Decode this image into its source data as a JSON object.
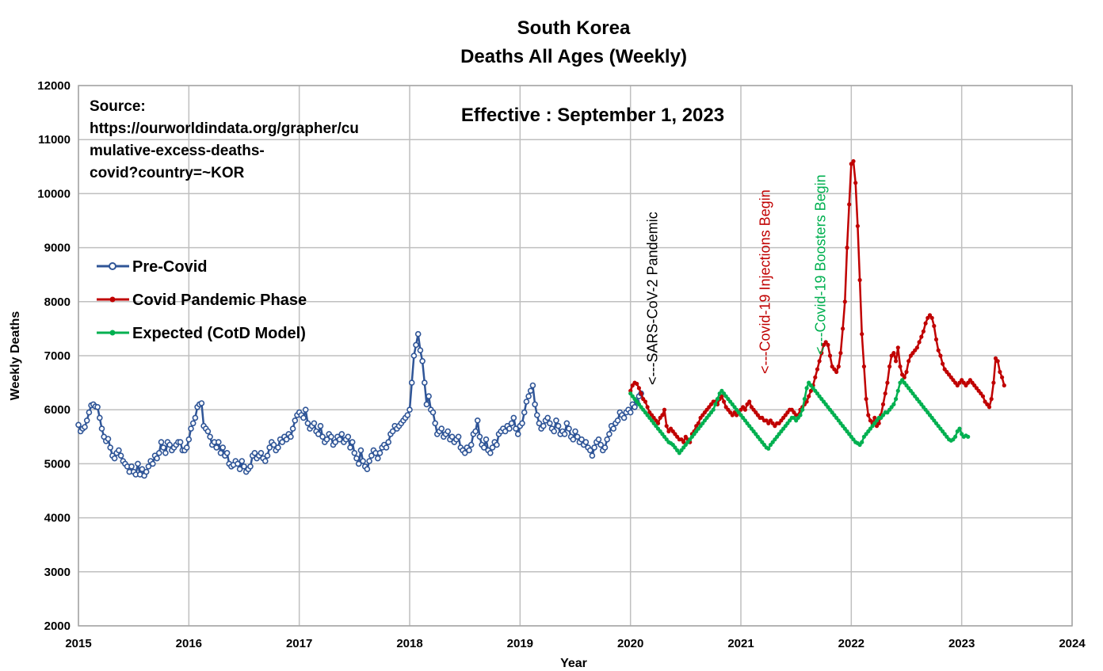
{
  "chart_data": {
    "type": "line",
    "title": "South Korea",
    "subtitle": "Deaths All Ages (Weekly)",
    "xlabel": "Year",
    "ylabel": "Weekly Deaths",
    "xlim": [
      2015,
      2024
    ],
    "ylim": [
      2000,
      12000
    ],
    "x_ticks": [
      "2015",
      "2016",
      "2017",
      "2018",
      "2019",
      "2020",
      "2021",
      "2022",
      "2023",
      "2024"
    ],
    "y_ticks": [
      "2000",
      "3000",
      "4000",
      "5000",
      "6000",
      "7000",
      "8000",
      "9000",
      "10000",
      "11000",
      "12000"
    ],
    "grid": true,
    "legend_position": "left",
    "source_lines": [
      "Source:",
      "https://ourworldindata.org/grapher/cu",
      "mulative-excess-deaths-",
      "covid?country=~KOR"
    ],
    "effective_text": "Effective : September 1, 2023",
    "annotations": [
      {
        "id": "sars",
        "text": "<---SARS-CoV-2 Pandemic",
        "x": 2020.2,
        "color": "#000000"
      },
      {
        "id": "injections",
        "text": "<---Covid-19 Injections Begin",
        "x": 2021.22,
        "color": "#c00000"
      },
      {
        "id": "boosters",
        "text": "<---Covid-19 Boosters Begin",
        "x": 2021.72,
        "color": "#00b050"
      }
    ],
    "series": [
      {
        "name": "Pre-Covid",
        "color": "#2f5597",
        "x_start": 2015.0,
        "weeks_per_year": 52,
        "values": [
          5720,
          5600,
          5650,
          5680,
          5800,
          5950,
          6080,
          6100,
          6060,
          6050,
          5850,
          5650,
          5500,
          5420,
          5460,
          5300,
          5150,
          5100,
          5200,
          5250,
          5150,
          5050,
          5000,
          4950,
          4850,
          4950,
          4850,
          4800,
          5000,
          4800,
          4900,
          4780,
          4850,
          4950,
          5050,
          5000,
          5150,
          5100,
          5200,
          5400,
          5300,
          5200,
          5400,
          5350,
          5250,
          5300,
          5350,
          5400,
          5400,
          5250,
          5250,
          5300,
          5450,
          5650,
          5750,
          5850,
          6050,
          6100,
          6120,
          5700,
          5650,
          5600,
          5500,
          5350,
          5400,
          5300,
          5400,
          5200,
          5300,
          5150,
          5200,
          5000,
          4950,
          4980,
          5050,
          5000,
          4900,
          5050,
          4950,
          4850,
          4900,
          4950,
          5150,
          5200,
          5100,
          5150,
          5200,
          5100,
          5050,
          5150,
          5300,
          5400,
          5350,
          5250,
          5300,
          5450,
          5400,
          5500,
          5450,
          5550,
          5500,
          5650,
          5800,
          5900,
          5950,
          5900,
          5850,
          6000,
          5750,
          5650,
          5700,
          5750,
          5600,
          5550,
          5700,
          5500,
          5400,
          5450,
          5550,
          5500,
          5350,
          5400,
          5500,
          5450,
          5550,
          5400,
          5450,
          5500,
          5300,
          5400,
          5200,
          5100,
          5000,
          5250,
          5050,
          4950,
          4900,
          5050,
          5150,
          5250,
          5200,
          5100,
          5200,
          5300,
          5350,
          5300,
          5400,
          5550,
          5600,
          5700,
          5650,
          5700,
          5750,
          5800,
          5850,
          5900,
          6000,
          6500,
          7000,
          7200,
          7400,
          7100,
          6900,
          6500,
          6100,
          6250,
          6000,
          5950,
          5750,
          5550,
          5600,
          5650,
          5500,
          5550,
          5600,
          5450,
          5500,
          5400,
          5450,
          5500,
          5300,
          5250,
          5200,
          5300,
          5250,
          5350,
          5550,
          5600,
          5800,
          5500,
          5350,
          5300,
          5450,
          5250,
          5200,
          5300,
          5400,
          5350,
          5550,
          5600,
          5650,
          5600,
          5700,
          5650,
          5750,
          5850,
          5650,
          5550,
          5700,
          5750,
          5950,
          6150,
          6250,
          6350,
          6450,
          6100,
          5900,
          5750,
          5650,
          5700,
          5800,
          5850,
          5750,
          5650,
          5600,
          5800,
          5700,
          5550,
          5600,
          5550,
          5750,
          5650,
          5500,
          5450,
          5600,
          5500,
          5400,
          5450,
          5350,
          5400,
          5300,
          5250,
          5150,
          5300,
          5400,
          5450,
          5350,
          5250,
          5300,
          5450,
          5550,
          5700,
          5650,
          5750,
          5800,
          5950,
          5900,
          5850,
          5950,
          6000,
          5950,
          6100,
          6050,
          6150,
          6250,
          6300
        ]
      },
      {
        "name": "Covid Pandemic Phase",
        "color": "#c00000",
        "x_start": 2020.0,
        "weeks_per_year": 52,
        "values": [
          6350,
          6450,
          6500,
          6480,
          6400,
          6300,
          6200,
          6150,
          6050,
          5950,
          5900,
          5850,
          5800,
          5750,
          5850,
          5900,
          6000,
          5700,
          5600,
          5650,
          5600,
          5550,
          5500,
          5450,
          5450,
          5400,
          5500,
          5450,
          5400,
          5550,
          5600,
          5700,
          5750,
          5850,
          5900,
          5950,
          6000,
          6050,
          6100,
          6150,
          6150,
          6100,
          6200,
          6250,
          6150,
          6050,
          6000,
          5950,
          5900,
          5950,
          5900,
          5950,
          6000,
          6050,
          6000,
          6100,
          6150,
          6050,
          6000,
          5950,
          5900,
          5850,
          5850,
          5800,
          5800,
          5750,
          5800,
          5750,
          5700,
          5750,
          5750,
          5800,
          5850,
          5900,
          5950,
          6000,
          6000,
          5950,
          5900,
          5900,
          6000,
          6050,
          6100,
          6150,
          6250,
          6350,
          6450,
          6600,
          6750,
          6900,
          7050,
          7200,
          7250,
          7200,
          7000,
          6800,
          6750,
          6700,
          6800,
          7050,
          7500,
          8000,
          9000,
          9800,
          10550,
          10600,
          10200,
          9400,
          8400,
          7400,
          6800,
          6200,
          5900,
          5800,
          5750,
          5850,
          5700,
          5750,
          5900,
          6100,
          6300,
          6500,
          6800,
          7000,
          7050,
          6900,
          7150,
          6800,
          6650,
          6600,
          6700,
          6900,
          7000,
          7050,
          7100,
          7150,
          7250,
          7350,
          7450,
          7600,
          7700,
          7750,
          7700,
          7550,
          7300,
          7100,
          7000,
          6850,
          6750,
          6700,
          6650,
          6600,
          6550,
          6500,
          6450,
          6500,
          6550,
          6500,
          6450,
          6500,
          6550,
          6500,
          6450,
          6400,
          6350,
          6300,
          6250,
          6150,
          6100,
          6050,
          6200,
          6500,
          6950,
          6900,
          6700,
          6600,
          6450
        ]
      },
      {
        "name": "Expected (CotD Model)",
        "color": "#00b050",
        "x_start": 2020.0,
        "weeks_per_year": 52,
        "values": [
          6300,
          6250,
          6200,
          6150,
          6100,
          6050,
          6000,
          5950,
          5900,
          5850,
          5800,
          5750,
          5700,
          5650,
          5600,
          5550,
          5500,
          5450,
          5400,
          5380,
          5350,
          5300,
          5250,
          5200,
          5250,
          5300,
          5350,
          5400,
          5450,
          5500,
          5550,
          5600,
          5650,
          5700,
          5750,
          5800,
          5850,
          5900,
          5950,
          6000,
          6100,
          6200,
          6300,
          6350,
          6300,
          6250,
          6200,
          6150,
          6100,
          6050,
          6000,
          5950,
          5900,
          5850,
          5800,
          5750,
          5700,
          5650,
          5600,
          5550,
          5500,
          5450,
          5400,
          5350,
          5300,
          5280,
          5350,
          5400,
          5450,
          5500,
          5550,
          5600,
          5650,
          5700,
          5750,
          5800,
          5850,
          5850,
          5800,
          5850,
          5900,
          6000,
          6200,
          6400,
          6500,
          6450,
          6400,
          6350,
          6300,
          6250,
          6200,
          6150,
          6100,
          6050,
          6000,
          5950,
          5900,
          5850,
          5800,
          5750,
          5700,
          5650,
          5600,
          5550,
          5500,
          5450,
          5400,
          5380,
          5350,
          5400,
          5500,
          5550,
          5600,
          5650,
          5700,
          5750,
          5800,
          5850,
          5850,
          5900,
          5950,
          5950,
          6000,
          6050,
          6100,
          6200,
          6350,
          6500,
          6550,
          6500,
          6450,
          6400,
          6350,
          6300,
          6250,
          6200,
          6150,
          6100,
          6050,
          6000,
          5950,
          5900,
          5850,
          5800,
          5750,
          5700,
          5650,
          5600,
          5550,
          5500,
          5450,
          5430,
          5450,
          5500,
          5600,
          5650,
          5550,
          5500,
          5520,
          5500
        ]
      }
    ]
  }
}
